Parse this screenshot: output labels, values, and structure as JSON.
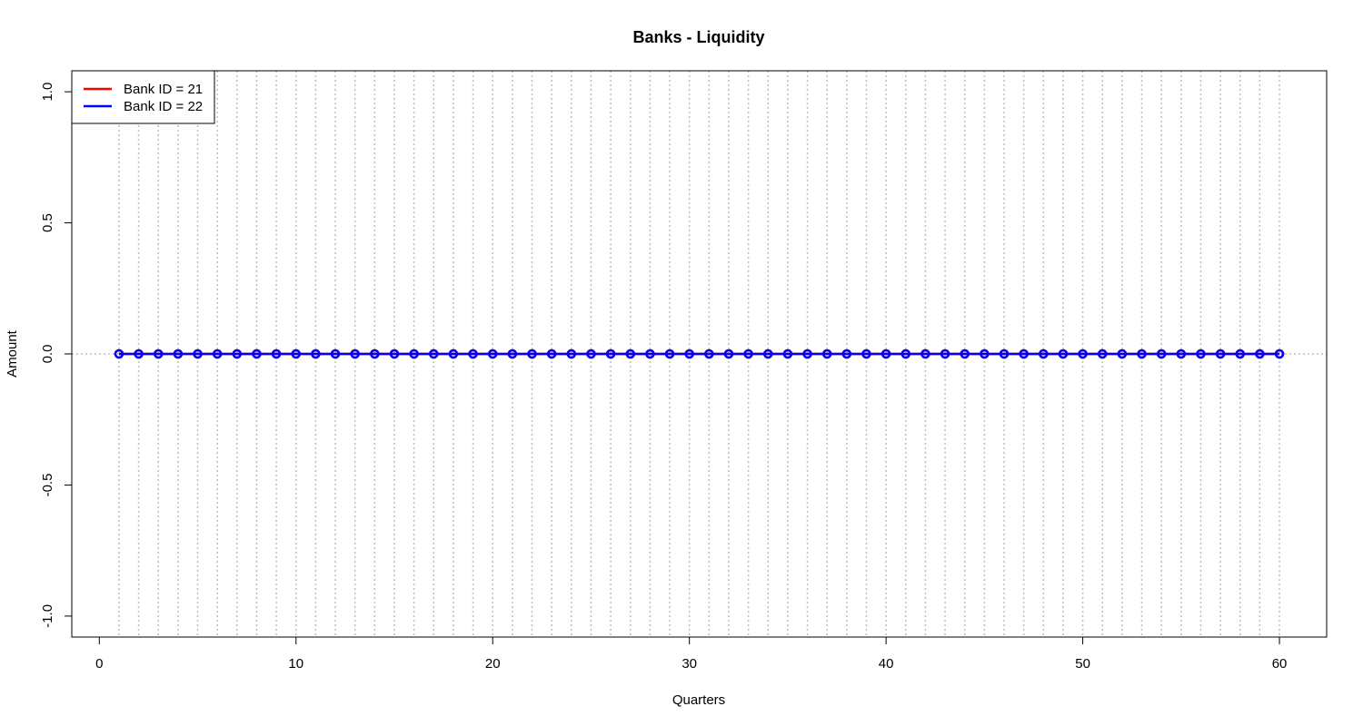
{
  "chart_data": {
    "type": "line",
    "title": "Banks - Liquidity",
    "xlabel": "Quarters",
    "ylabel": "Amount",
    "xlim": [
      -1.4,
      62.4
    ],
    "ylim": [
      -1.08,
      1.08
    ],
    "x_ticks": [
      0,
      10,
      20,
      30,
      40,
      50,
      60
    ],
    "y_ticks": [
      -1.0,
      -0.5,
      0.0,
      0.5,
      1.0
    ],
    "x_tick_labels": [
      "0",
      "10",
      "20",
      "30",
      "40",
      "50",
      "60"
    ],
    "y_tick_labels": [
      "-1.0",
      "-0.5",
      "0.0",
      "0.5",
      "1.0"
    ],
    "grid": "vertical dotted at each quarter 1-60, horizontal dotted at 0",
    "legend_position": "top-left",
    "x": [
      1,
      2,
      3,
      4,
      5,
      6,
      7,
      8,
      9,
      10,
      11,
      12,
      13,
      14,
      15,
      16,
      17,
      18,
      19,
      20,
      21,
      22,
      23,
      24,
      25,
      26,
      27,
      28,
      29,
      30,
      31,
      32,
      33,
      34,
      35,
      36,
      37,
      38,
      39,
      40,
      41,
      42,
      43,
      44,
      45,
      46,
      47,
      48,
      49,
      50,
      51,
      52,
      53,
      54,
      55,
      56,
      57,
      58,
      59,
      60
    ],
    "series": [
      {
        "name": "Bank ID = 21",
        "color": "#ff0000",
        "values": [
          0,
          0,
          0,
          0,
          0,
          0,
          0,
          0,
          0,
          0,
          0,
          0,
          0,
          0,
          0,
          0,
          0,
          0,
          0,
          0,
          0,
          0,
          0,
          0,
          0,
          0,
          0,
          0,
          0,
          0,
          0,
          0,
          0,
          0,
          0,
          0,
          0,
          0,
          0,
          0,
          0,
          0,
          0,
          0,
          0,
          0,
          0,
          0,
          0,
          0,
          0,
          0,
          0,
          0,
          0,
          0,
          0,
          0,
          0,
          0
        ]
      },
      {
        "name": "Bank ID = 22",
        "color": "#0000ff",
        "values": [
          0,
          0,
          0,
          0,
          0,
          0,
          0,
          0,
          0,
          0,
          0,
          0,
          0,
          0,
          0,
          0,
          0,
          0,
          0,
          0,
          0,
          0,
          0,
          0,
          0,
          0,
          0,
          0,
          0,
          0,
          0,
          0,
          0,
          0,
          0,
          0,
          0,
          0,
          0,
          0,
          0,
          0,
          0,
          0,
          0,
          0,
          0,
          0,
          0,
          0,
          0,
          0,
          0,
          0,
          0,
          0,
          0,
          0,
          0,
          0
        ]
      }
    ]
  }
}
